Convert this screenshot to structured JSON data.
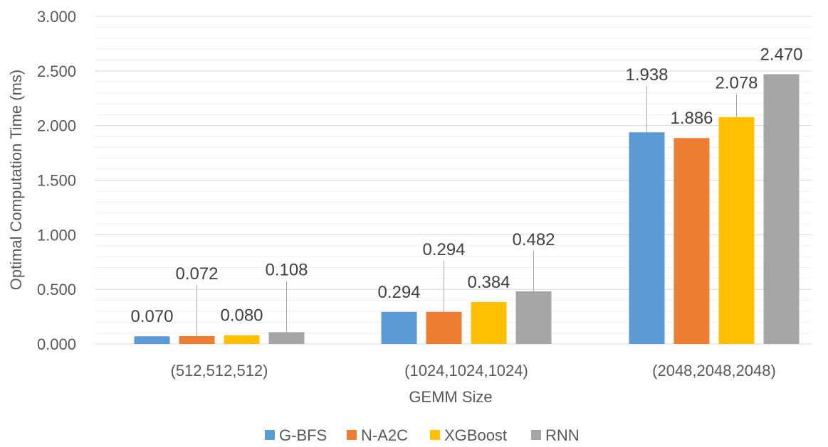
{
  "chart_data": {
    "type": "bar",
    "title": "",
    "xlabel": "GEMM Size",
    "ylabel": "Optimal Computation Time (ms)",
    "ylim": [
      0,
      3
    ],
    "yticks": [
      0,
      0.5,
      1.0,
      1.5,
      2.0,
      2.5,
      3.0
    ],
    "ytick_labels": [
      "0.000",
      "0.500",
      "1.000",
      "1.500",
      "2.000",
      "2.500",
      "3.000"
    ],
    "grid": true,
    "legend_position": "bottom",
    "categories": [
      "(512,512,512)",
      "(1024,1024,1024)",
      "(2048,2048,2048)"
    ],
    "series": [
      {
        "name": "G-BFS",
        "color": "#5b9bd5",
        "values": [
          0.07,
          0.294,
          1.938
        ],
        "labels": [
          "0.070",
          "0.294",
          "1.938"
        ]
      },
      {
        "name": "N-A2C",
        "color": "#ed7d31",
        "values": [
          0.072,
          0.294,
          1.886
        ],
        "labels": [
          "0.072",
          "0.294",
          "1.886"
        ]
      },
      {
        "name": "XGBoost",
        "color": "#ffc000",
        "values": [
          0.08,
          0.384,
          2.078
        ],
        "labels": [
          "0.080",
          "0.384",
          "2.078"
        ]
      },
      {
        "name": "RNN",
        "color": "#a5a5a5",
        "values": [
          0.108,
          0.482,
          2.47
        ],
        "labels": [
          "0.108",
          "0.482",
          "2.470"
        ]
      }
    ]
  }
}
